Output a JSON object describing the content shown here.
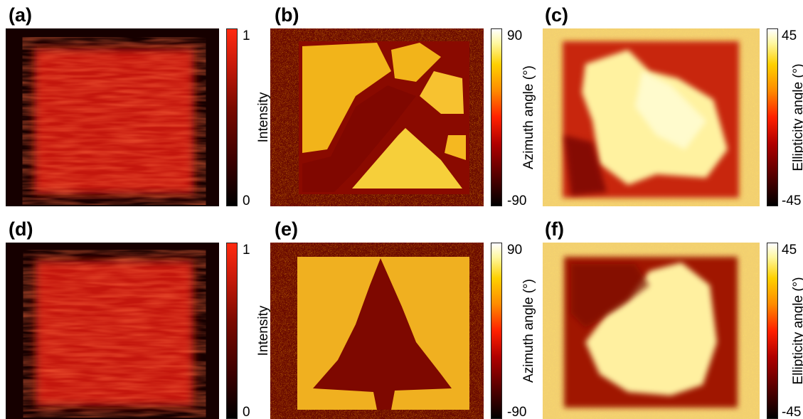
{
  "panels": {
    "a": {
      "letter": "(a)",
      "colorbar": {
        "max": "1",
        "min": "0",
        "title": "Intensity"
      }
    },
    "b": {
      "letter": "(b)",
      "colorbar": {
        "max": "90",
        "min": "-90",
        "title": "Azimuth angle (°)"
      }
    },
    "c": {
      "letter": "(c)",
      "colorbar": {
        "max": "45",
        "min": "-45",
        "title": "Ellipticity angle (°)"
      }
    },
    "d": {
      "letter": "(d)",
      "colorbar": {
        "max": "1",
        "min": "0",
        "title": "Intensity"
      }
    },
    "e": {
      "letter": "(e)",
      "colorbar": {
        "max": "90",
        "min": "-90",
        "title": "Azimuth angle (°)"
      }
    },
    "f": {
      "letter": "(f)",
      "colorbar": {
        "max": "45",
        "min": "-45",
        "title": "Ellipticity angle (°)"
      }
    }
  },
  "colors": {
    "intensity_map": [
      "#000000",
      "#7a0a00",
      "#ff2a10"
    ],
    "hot_map": [
      "#000000",
      "#b00000",
      "#ff2000",
      "#ffd000",
      "#ffffff"
    ]
  }
}
